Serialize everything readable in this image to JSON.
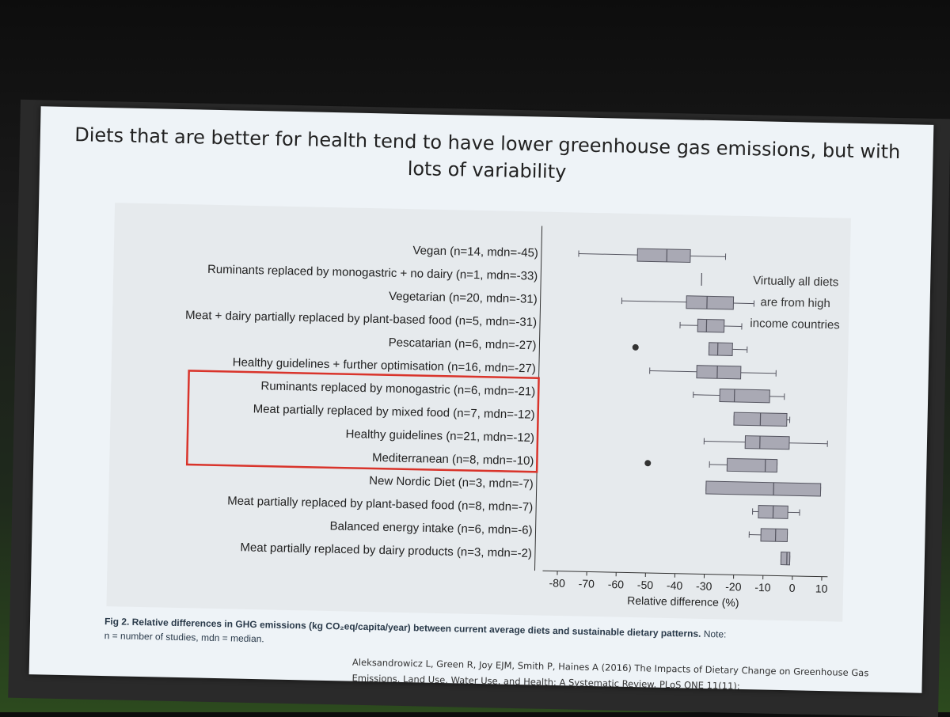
{
  "slide": {
    "title": "Diets that are better for health tend to have lower greenhouse gas emissions, but with lots of variability",
    "annotation": "Virtually all diets are from high income countries",
    "caption_bold": "Fig 2. Relative differences in GHG emissions (kg CO₂eq/capita/year) between current average diets and sustainable dietary patterns.",
    "caption_note": "Note:",
    "caption_rest": "n = number of studies, mdn = median.",
    "citation": "Aleksandrowicz L, Green R, Joy EJM, Smith P, Haines A (2016) The Impacts of Dietary Change on Greenhouse Gas Emissions, Land Use, Water Use, and Health: A Systematic Review. PLoS ONE 11(11):"
  },
  "colors": {
    "box_fill": "#a9a9b4",
    "box_stroke": "#555560",
    "highlight": "#d9342b",
    "text": "#222222"
  },
  "chart_data": {
    "type": "boxplot",
    "orientation": "horizontal",
    "xlabel": "Relative difference (%)",
    "xlim": [
      -85,
      12
    ],
    "xticks": [
      -80,
      -70,
      -60,
      -50,
      -40,
      -30,
      -20,
      -10,
      0,
      10
    ],
    "highlighted_rows": [
      6,
      7,
      8,
      9
    ],
    "rows": [
      {
        "label": "Vegan (n=14, mdn=-45)",
        "min": -75,
        "q1": -55,
        "median": -45,
        "q3": -37,
        "max": -25,
        "outliers": []
      },
      {
        "label": "Ruminants replaced by monogastric + no dairy (n=1, mdn=-33)",
        "min": null,
        "q1": null,
        "median": -33,
        "q3": null,
        "max": null,
        "outliers": []
      },
      {
        "label": "Vegetarian (n=20, mdn=-31)",
        "min": -60,
        "q1": -38,
        "median": -31,
        "q3": -22,
        "max": -15,
        "outliers": []
      },
      {
        "label": "Meat + dairy partially replaced by plant-based food (n=5, mdn=-31)",
        "min": -40,
        "q1": -34,
        "median": -31,
        "q3": -25,
        "max": -19,
        "outliers": []
      },
      {
        "label": "Pescatarian (n=6, mdn=-27)",
        "min": -30,
        "q1": -30,
        "median": -27,
        "q3": -22,
        "max": -17,
        "outliers": [
          -55
        ]
      },
      {
        "label": "Healthy guidelines + further optimisation (n=16, mdn=-27)",
        "min": -50,
        "q1": -34,
        "median": -27,
        "q3": -19,
        "max": -7,
        "outliers": []
      },
      {
        "label": "Ruminants replaced by monogastric (n=6, mdn=-21)",
        "min": -35,
        "q1": -26,
        "median": -21,
        "q3": -9,
        "max": -4,
        "outliers": []
      },
      {
        "label": "Meat partially replaced by mixed food (n=7, mdn=-12)",
        "min": -21,
        "q1": -21,
        "median": -12,
        "q3": -3,
        "max": -2,
        "outliers": []
      },
      {
        "label": "Healthy guidelines (n=21, mdn=-12)",
        "min": -31,
        "q1": -17,
        "median": -12,
        "q3": -2,
        "max": 11,
        "outliers": []
      },
      {
        "label": "Mediterranean (n=8, mdn=-10)",
        "min": -29,
        "q1": -23,
        "median": -10,
        "q3": -6,
        "max": -6,
        "outliers": [
          -50
        ]
      },
      {
        "label": "New Nordic Diet (n=3, mdn=-7)",
        "min": -30,
        "q1": -30,
        "median": -7,
        "q3": 9,
        "max": 9,
        "outliers": []
      },
      {
        "label": "Meat partially replaced by plant-based food (n=8, mdn=-7)",
        "min": -14,
        "q1": -12,
        "median": -7,
        "q3": -2,
        "max": 2,
        "outliers": []
      },
      {
        "label": "Balanced energy intake (n=6, mdn=-6)",
        "min": -15,
        "q1": -11,
        "median": -6,
        "q3": -2,
        "max": -2,
        "outliers": []
      },
      {
        "label": "Meat partially replaced by dairy products (n=3, mdn=-2)",
        "min": -4,
        "q1": -4,
        "median": -2,
        "q3": -1,
        "max": -1,
        "outliers": []
      }
    ]
  }
}
